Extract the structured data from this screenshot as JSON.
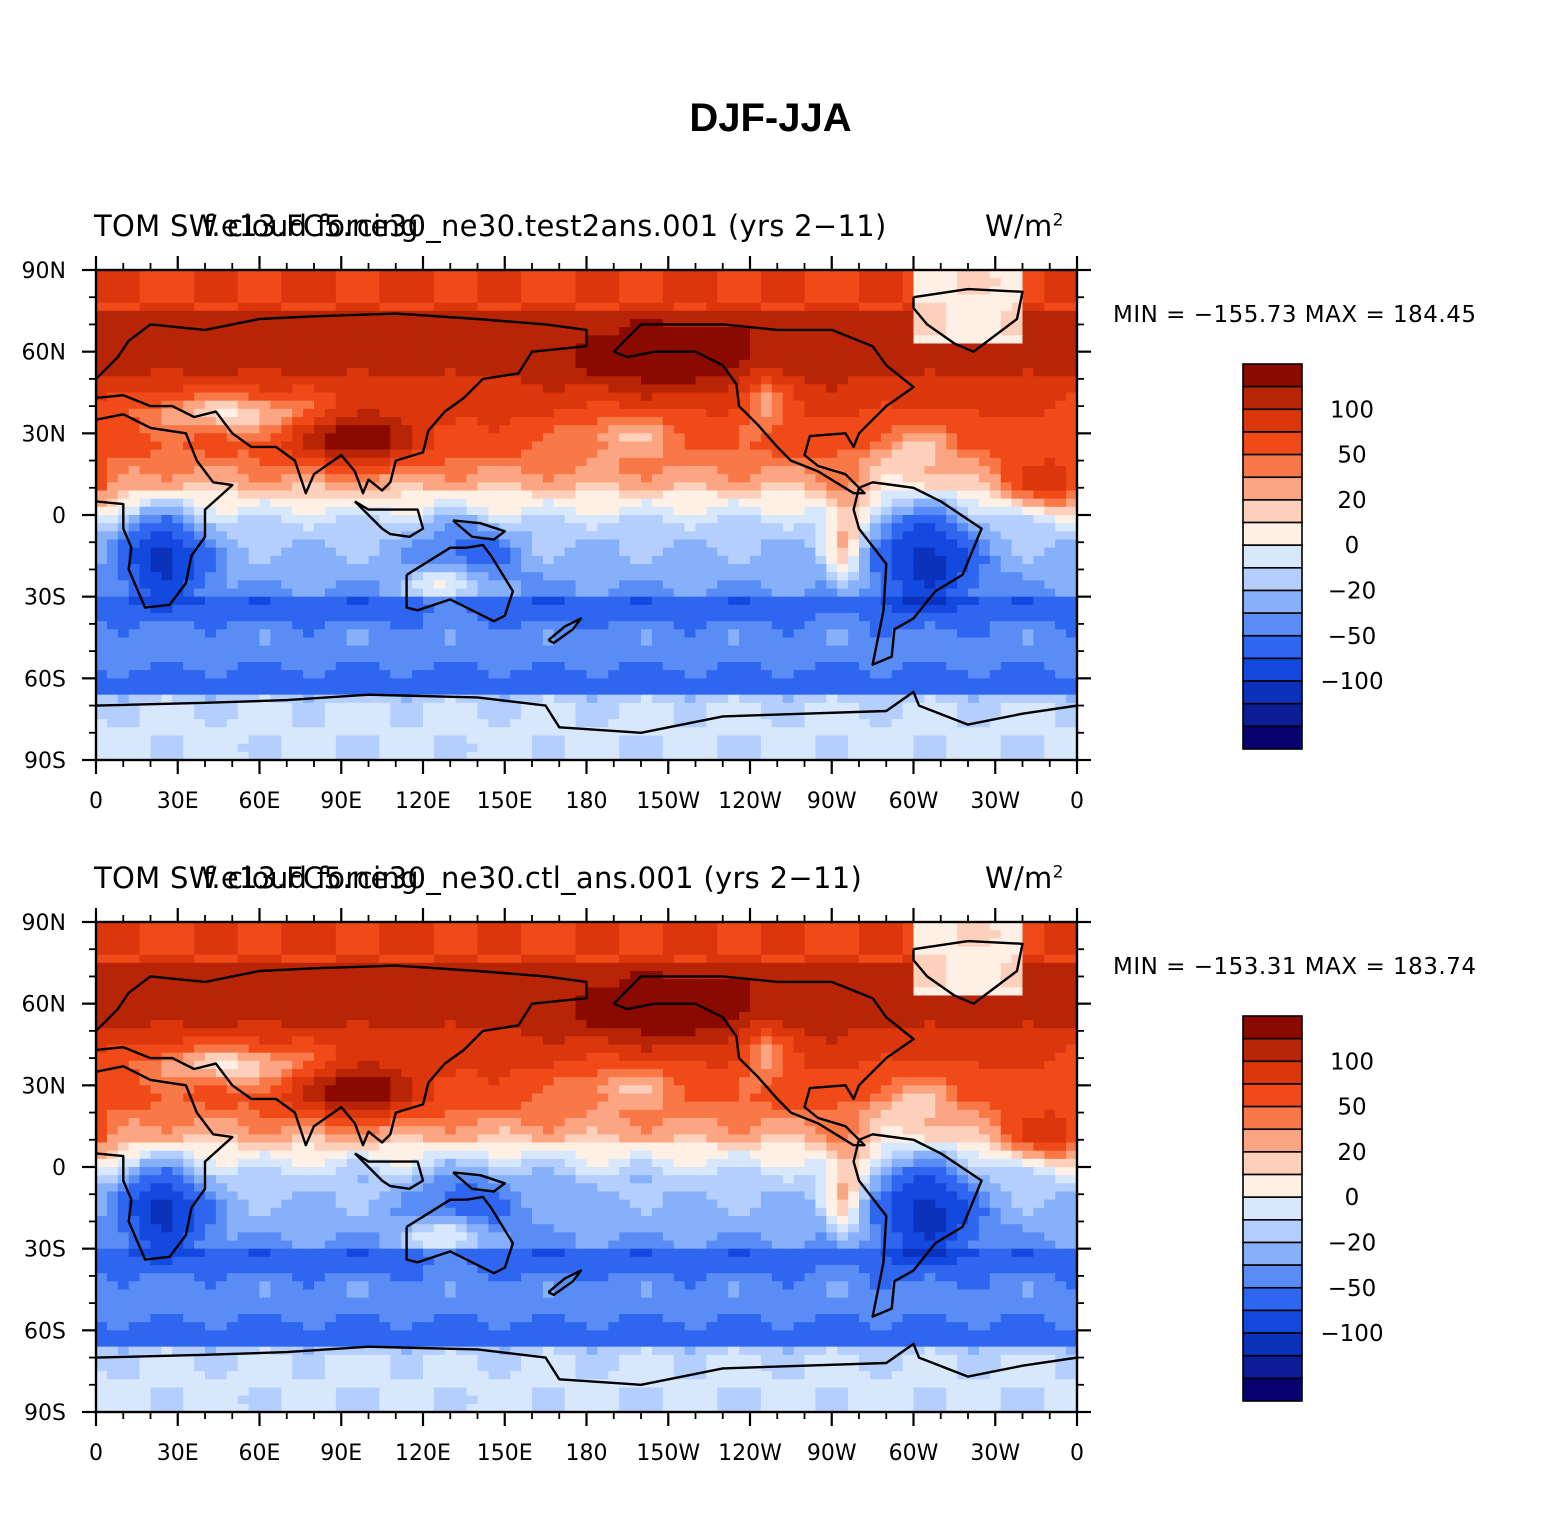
{
  "page_title": "DJF-JJA",
  "colors": {
    "levels": [
      "#08006e",
      "#0b1c96",
      "#0a32bd",
      "#1449e0",
      "#2f66f0",
      "#5a8cf5",
      "#87b0fa",
      "#b4cffd",
      "#d7e8fd",
      "#fff0e6",
      "#fdd0bb",
      "#fca582",
      "#f87848",
      "#f04a18",
      "#db360c",
      "#b82406",
      "#8b0a00"
    ],
    "coastline": "#000000"
  },
  "chart_data": [
    {
      "type": "heatmap",
      "title_left": "TOM SW cloud forcing",
      "title_center": "f.e13.FC5.ne30_ne30.test2ans.001 (yrs 2−11)",
      "units": "W/m",
      "units_exp": "2",
      "min_label": "MIN = −155.73",
      "max_label": "MAX = 184.45",
      "min": -155.73,
      "max": 184.45,
      "x_ticks": [
        "0",
        "30E",
        "60E",
        "90E",
        "120E",
        "150E",
        "180",
        "150W",
        "120W",
        "90W",
        "60W",
        "30W",
        "0"
      ],
      "y_ticks": [
        "90N",
        "60N",
        "30N",
        "0",
        "30S",
        "60S",
        "90S"
      ],
      "xlim": [
        0,
        360
      ],
      "ylim": [
        -90,
        90
      ],
      "colorbar_labels": [
        "100",
        "50",
        "20",
        "0",
        "−20",
        "−50",
        "−100"
      ],
      "colorbar_levels": [
        -150,
        -125,
        -100,
        -75,
        -50,
        -35,
        -20,
        -10,
        0,
        10,
        20,
        35,
        50,
        75,
        100,
        125,
        150
      ]
    },
    {
      "type": "heatmap",
      "title_left": "TOM SW cloud forcing",
      "title_center": "f.e13.FC5.ne30_ne30.ctl_ans.001 (yrs 2−11)",
      "units": "W/m",
      "units_exp": "2",
      "min_label": "MIN = −153.31",
      "max_label": "MAX = 183.74",
      "min": -153.31,
      "max": 183.74,
      "x_ticks": [
        "0",
        "30E",
        "60E",
        "90E",
        "120E",
        "150E",
        "180",
        "150W",
        "120W",
        "90W",
        "60W",
        "30W",
        "0"
      ],
      "y_ticks": [
        "90N",
        "60N",
        "30N",
        "0",
        "30S",
        "60S",
        "90S"
      ],
      "xlim": [
        0,
        360
      ],
      "ylim": [
        -90,
        90
      ],
      "colorbar_labels": [
        "100",
        "50",
        "20",
        "0",
        "−20",
        "−50",
        "−100"
      ],
      "colorbar_levels": [
        -150,
        -125,
        -100,
        -75,
        -50,
        -35,
        -20,
        -10,
        0,
        10,
        20,
        35,
        50,
        75,
        100,
        125,
        150
      ]
    }
  ]
}
